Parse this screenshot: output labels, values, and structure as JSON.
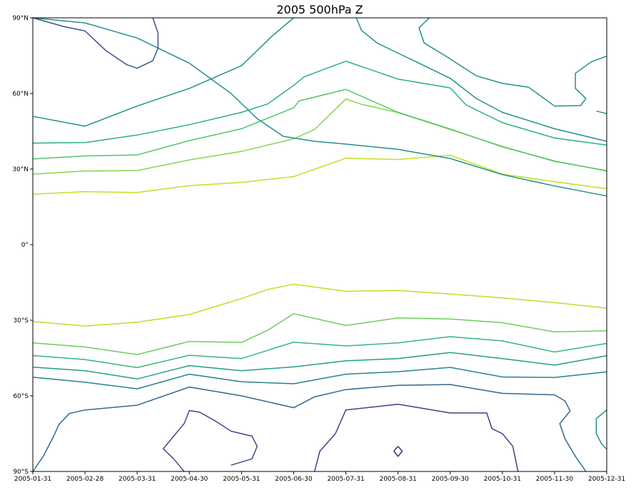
{
  "chart_data": {
    "type": "contour",
    "title": "2005 500hPa Z",
    "xlabel": "",
    "ylabel": "",
    "x_tick_labels": [
      "2005-01-31",
      "2005-02-28",
      "2005-03-31",
      "2005-04-30",
      "2005-05-31",
      "2005-06-30",
      "2005-07-31",
      "2005-08-31",
      "2005-09-30",
      "2005-10-31",
      "2005-11-30",
      "2005-12-31"
    ],
    "y_tick_labels": [
      {
        "lat": 90,
        "label": "90°N"
      },
      {
        "lat": 60,
        "label": "60°N"
      },
      {
        "lat": 30,
        "label": "30°N"
      },
      {
        "lat": 0,
        "label": "0°"
      },
      {
        "lat": -30,
        "label": "30°S"
      },
      {
        "lat": -60,
        "label": "60°S"
      },
      {
        "lat": -90,
        "label": "90°S"
      }
    ],
    "xlim": [
      1,
      12
    ],
    "ylim": [
      -90,
      90
    ],
    "grid": false,
    "contours": [
      {
        "color": "#c2df23",
        "points": [
          [
            1,
            20
          ],
          [
            2,
            21
          ],
          [
            3,
            20.7
          ],
          [
            4,
            23.4
          ],
          [
            5,
            24.7
          ],
          [
            6,
            27
          ],
          [
            7,
            34.3
          ],
          [
            8,
            33.8
          ],
          [
            9,
            35.5
          ],
          [
            10,
            28
          ],
          [
            11,
            25
          ],
          [
            12,
            22.2
          ]
        ]
      },
      {
        "color": "#86d549",
        "points": [
          [
            1,
            28
          ],
          [
            2,
            29.2
          ],
          [
            3,
            29.4
          ],
          [
            4,
            33.6
          ],
          [
            5,
            37
          ],
          [
            6,
            42
          ],
          [
            6.4,
            45.7
          ],
          [
            7,
            57.8
          ],
          [
            7.3,
            55.7
          ],
          [
            8,
            52.4
          ],
          [
            9,
            45.7
          ],
          [
            10,
            39
          ],
          [
            11,
            33
          ],
          [
            12,
            29.4
          ]
        ]
      },
      {
        "color": "#52c569",
        "points": [
          [
            1,
            34
          ],
          [
            2,
            35.2
          ],
          [
            3,
            35.6
          ],
          [
            4,
            41.3
          ],
          [
            5,
            46
          ],
          [
            6,
            54.3
          ],
          [
            6.1,
            57
          ],
          [
            7,
            61.6
          ],
          [
            8,
            52.5
          ],
          [
            9,
            45.9
          ],
          [
            10,
            38.8
          ],
          [
            11,
            33.2
          ],
          [
            12,
            29.2
          ]
        ]
      },
      {
        "color": "#2ab07f",
        "points": [
          [
            1,
            40.3
          ],
          [
            2,
            40.5
          ],
          [
            3,
            43.5
          ],
          [
            4,
            47.6
          ],
          [
            5,
            52.5
          ],
          [
            5.5,
            55.8
          ],
          [
            6,
            63.2
          ],
          [
            6.2,
            66.6
          ],
          [
            7,
            72.8
          ],
          [
            8,
            65.7
          ],
          [
            9,
            62.2
          ],
          [
            9.3,
            55.5
          ],
          [
            10,
            48.4
          ],
          [
            11,
            42.3
          ],
          [
            12,
            39.5
          ]
        ]
      },
      {
        "color": "#21918c",
        "points": [
          [
            1,
            50.9
          ],
          [
            2,
            47
          ],
          [
            3,
            55
          ],
          [
            4,
            62
          ],
          [
            5,
            71
          ],
          [
            5.6,
            83
          ],
          [
            6,
            90
          ]
        ]
      },
      {
        "color": "#21918c",
        "points": [
          [
            1,
            90
          ],
          [
            2,
            88
          ],
          [
            3,
            82
          ],
          [
            4,
            72
          ],
          [
            4.8,
            60
          ],
          [
            5.3,
            50
          ],
          [
            5.8,
            43
          ],
          [
            6.4,
            41
          ],
          [
            7,
            39.9
          ],
          [
            8,
            37.8
          ],
          [
            9,
            34.2
          ],
          [
            10,
            27.8
          ],
          [
            11,
            23.3
          ],
          [
            12,
            19.3
          ]
        ]
      },
      {
        "color": "#21918c",
        "points": [
          [
            7.2,
            90
          ],
          [
            7.3,
            85
          ],
          [
            7.6,
            80
          ],
          [
            8,
            76
          ],
          [
            8.4,
            72
          ],
          [
            9,
            66
          ],
          [
            9.5,
            58
          ],
          [
            10,
            52.5
          ],
          [
            11,
            46
          ],
          [
            12,
            41
          ]
        ]
      },
      {
        "color": "#21918c",
        "points": [
          [
            8.6,
            90
          ],
          [
            8.4,
            86
          ],
          [
            8.5,
            80
          ],
          [
            8.9,
            75
          ],
          [
            9.5,
            67
          ],
          [
            10,
            64
          ],
          [
            10.5,
            62.5
          ],
          [
            11,
            55
          ],
          [
            11.5,
            55.2
          ],
          [
            11.6,
            58
          ],
          [
            11.4,
            62
          ],
          [
            11.4,
            68
          ],
          [
            11.7,
            72.5
          ],
          [
            12,
            74.8
          ]
        ]
      },
      {
        "color": "#3b528b",
        "points": [
          [
            1,
            90
          ],
          [
            1.6,
            86.5
          ],
          [
            2,
            84.8
          ],
          [
            2.4,
            77
          ],
          [
            2.8,
            71.4
          ],
          [
            3,
            70
          ],
          [
            3.3,
            73
          ],
          [
            3.4,
            78
          ],
          [
            3.4,
            84
          ],
          [
            3.3,
            90
          ]
        ]
      },
      {
        "color": "#21918c",
        "points": [
          [
            11.8,
            53
          ],
          [
            12,
            52
          ]
        ]
      },
      {
        "color": "#bddf26",
        "points": [
          [
            1,
            -30.5
          ],
          [
            2,
            -32.3
          ],
          [
            3,
            -30.8
          ],
          [
            4,
            -27.7
          ],
          [
            5,
            -21.4
          ],
          [
            5.5,
            -17.8
          ],
          [
            6,
            -15.7
          ],
          [
            7,
            -18.5
          ],
          [
            8,
            -18.2
          ],
          [
            9,
            -19.6
          ],
          [
            10,
            -21.1
          ],
          [
            11,
            -23
          ],
          [
            12,
            -25.2
          ]
        ]
      },
      {
        "color": "#6ccd5a",
        "points": [
          [
            1,
            -39
          ],
          [
            2,
            -40.6
          ],
          [
            3,
            -43.6
          ],
          [
            4,
            -38.4
          ],
          [
            5,
            -38.8
          ],
          [
            5.5,
            -34
          ],
          [
            6,
            -27.4
          ],
          [
            7,
            -32.1
          ],
          [
            8,
            -29.1
          ],
          [
            9,
            -29.5
          ],
          [
            10,
            -31
          ],
          [
            11,
            -34.6
          ],
          [
            12,
            -34.2
          ]
        ]
      },
      {
        "color": "#35b779",
        "points": [
          [
            1,
            -44
          ],
          [
            2,
            -45.6
          ],
          [
            3,
            -48.8
          ],
          [
            4,
            -43.9
          ],
          [
            5,
            -45.2
          ],
          [
            6,
            -38.7
          ],
          [
            7,
            -40.2
          ],
          [
            8,
            -39
          ],
          [
            9,
            -36.5
          ],
          [
            10,
            -38.2
          ],
          [
            11,
            -42.6
          ],
          [
            12,
            -39.2
          ]
        ]
      },
      {
        "color": "#1f9e89",
        "points": [
          [
            1,
            -48.6
          ],
          [
            2,
            -50
          ],
          [
            3,
            -53.3
          ],
          [
            4,
            -48
          ],
          [
            5,
            -50
          ],
          [
            6,
            -48.5
          ],
          [
            7,
            -46.1
          ],
          [
            8,
            -45.2
          ],
          [
            9,
            -42.8
          ],
          [
            10,
            -45.2
          ],
          [
            11,
            -47.8
          ],
          [
            12,
            -44.1
          ]
        ]
      },
      {
        "color": "#26828e",
        "points": [
          [
            1,
            -52.6
          ],
          [
            2,
            -54.6
          ],
          [
            3,
            -57.2
          ],
          [
            4,
            -51.4
          ],
          [
            5,
            -54.4
          ],
          [
            6,
            -55.2
          ],
          [
            7,
            -51.4
          ],
          [
            8,
            -50.4
          ],
          [
            9,
            -48.7
          ],
          [
            10,
            -52.5
          ],
          [
            11,
            -52.7
          ],
          [
            12,
            -50.5
          ]
        ]
      },
      {
        "color": "#31688e",
        "points": [
          [
            1,
            -90
          ],
          [
            1.2,
            -84
          ],
          [
            1.4,
            -76
          ],
          [
            1.5,
            -71.4
          ],
          [
            1.7,
            -67
          ],
          [
            2,
            -65.6
          ],
          [
            3,
            -63.7
          ],
          [
            4,
            -56.5
          ],
          [
            5,
            -60
          ],
          [
            6,
            -64.7
          ],
          [
            6.4,
            -60.4
          ],
          [
            7,
            -57.5
          ],
          [
            8,
            -55.8
          ],
          [
            9,
            -55.5
          ],
          [
            10,
            -59
          ],
          [
            11,
            -59.6
          ],
          [
            11.2,
            -62
          ],
          [
            11.3,
            -66
          ],
          [
            11.1,
            -71
          ],
          [
            11.2,
            -77
          ],
          [
            11.4,
            -84
          ],
          [
            11.6,
            -90
          ]
        ]
      },
      {
        "color": "#3e4989",
        "points": [
          [
            3.9,
            -90
          ],
          [
            3.7,
            -85
          ],
          [
            3.5,
            -81
          ],
          [
            3.7,
            -76
          ],
          [
            3.9,
            -71
          ],
          [
            4,
            -65.8
          ],
          [
            4.2,
            -66.5
          ],
          [
            4.5,
            -70
          ],
          [
            4.8,
            -74
          ],
          [
            5.2,
            -76
          ],
          [
            5.3,
            -80
          ],
          [
            5.2,
            -85
          ],
          [
            4.8,
            -87.5
          ]
        ]
      },
      {
        "color": "#433e85",
        "points": [
          [
            6.4,
            -90
          ],
          [
            6.5,
            -82
          ],
          [
            6.8,
            -75
          ],
          [
            7,
            -65.6
          ],
          [
            8,
            -63.3
          ],
          [
            9,
            -66.8
          ],
          [
            9.7,
            -66.8
          ],
          [
            9.8,
            -73
          ],
          [
            10,
            -75
          ],
          [
            10.2,
            -80
          ],
          [
            10.3,
            -90
          ]
        ]
      },
      {
        "color": "#21918c",
        "points": [
          [
            12,
            -65.6
          ],
          [
            11.8,
            -69
          ],
          [
            11.8,
            -75
          ],
          [
            11.9,
            -79
          ],
          [
            12,
            -81.2
          ]
        ]
      },
      {
        "color": "#481f70",
        "points": [
          [
            8,
            -80
          ],
          [
            8.08,
            -82
          ],
          [
            8,
            -84
          ],
          [
            7.92,
            -82
          ],
          [
            8,
            -80
          ]
        ]
      }
    ]
  }
}
